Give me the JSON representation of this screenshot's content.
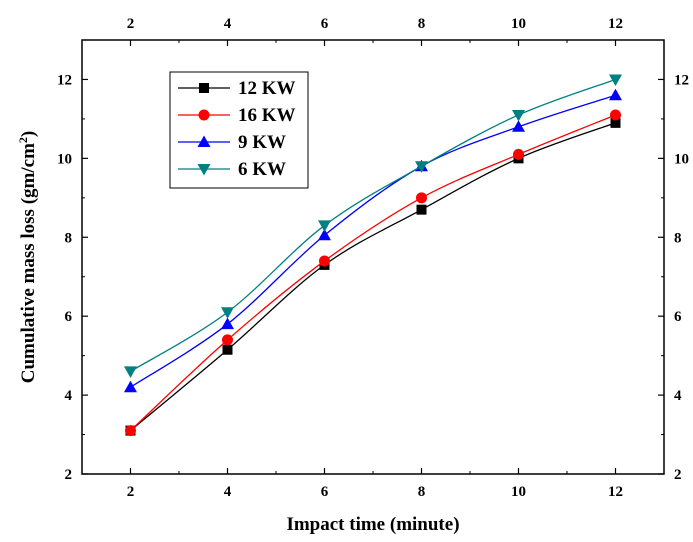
{
  "chart_data": {
    "type": "line",
    "title": "",
    "xlabel": "Impact time (minute)",
    "ylabel": "Cumulative mass loss (gm/cm",
    "ylabel_superscript": "2",
    "ylabel_suffix": ")",
    "xlim": [
      1,
      13
    ],
    "ylim": [
      2,
      13
    ],
    "x_ticks": [
      2,
      4,
      6,
      8,
      10,
      12
    ],
    "y_ticks": [
      2,
      4,
      6,
      8,
      10,
      12
    ],
    "x_tick_labels": [
      "2",
      "4",
      "6",
      "8",
      "10",
      "12"
    ],
    "y_tick_labels": [
      "2",
      "4",
      "6",
      "8",
      "10",
      "12"
    ],
    "grid": false,
    "legend_position": "top-left",
    "x": [
      2,
      4,
      6,
      8,
      10,
      12
    ],
    "series": [
      {
        "name": "12 KW",
        "color": "#000000",
        "marker": "square",
        "values": [
          3.1,
          5.15,
          7.3,
          8.7,
          10.0,
          10.9
        ]
      },
      {
        "name": "16 KW",
        "color": "#ff0000",
        "marker": "circle",
        "values": [
          3.1,
          5.4,
          7.4,
          9.0,
          10.1,
          11.1
        ]
      },
      {
        "name": "9 KW",
        "color": "#0000ff",
        "marker": "triangle-up",
        "values": [
          4.2,
          5.8,
          8.05,
          9.8,
          10.8,
          11.6
        ]
      },
      {
        "name": "6 KW",
        "color": "#008080",
        "marker": "triangle-down",
        "values": [
          4.6,
          6.1,
          8.3,
          9.8,
          11.1,
          12.0
        ]
      }
    ]
  }
}
